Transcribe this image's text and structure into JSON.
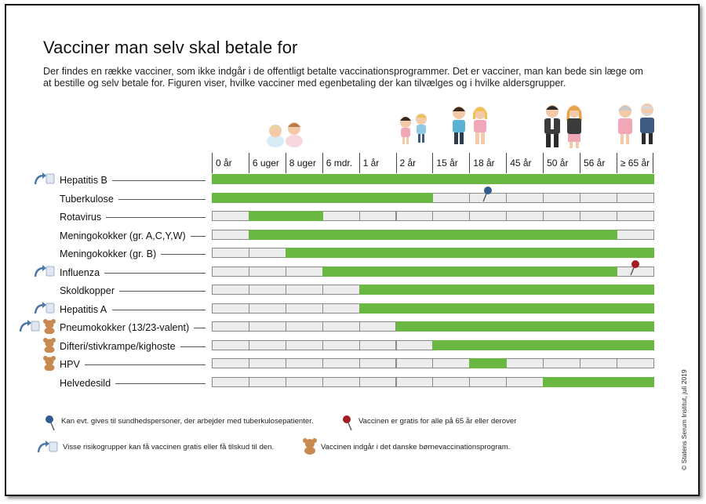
{
  "title": "Vacciner man selv skal betale for",
  "intro": "Der findes en række vacciner, som ikke indgår i de offentligt betalte vaccinationsprogrammer. Det er vacciner, man kan bede sin læge om at bestille og selv betale for. Figuren viser, hvilke vacciner med egenbetaling der kan tilvælges og i hvilke aldersgrupper.",
  "columns": [
    "0 år",
    "6 uger",
    "8 uger",
    "6 mdr.",
    "1 år",
    "2 år",
    "15 år",
    "18 år",
    "45 år",
    "50 år",
    "56 år",
    "≥ 65 år"
  ],
  "rows": [
    {
      "label": "Hepatitis B",
      "from": 0,
      "to": 12,
      "icons": [
        "arrow-icon"
      ]
    },
    {
      "label": "Tuberkulose",
      "from": 0,
      "to": 6,
      "icons": []
    },
    {
      "label": "Rotavirus",
      "from": 1,
      "to": 3,
      "icons": []
    },
    {
      "label": "Meningokokker (gr. A,C,Y,W)",
      "from": 1,
      "to": 11,
      "icons": []
    },
    {
      "label": "Meningokokker (gr. B)",
      "from": 2,
      "to": 12,
      "icons": []
    },
    {
      "label": "Influenza",
      "from": 3,
      "to": 11,
      "icons": [
        "arrow-icon"
      ]
    },
    {
      "label": "Skoldkopper",
      "from": 4,
      "to": 12,
      "icons": []
    },
    {
      "label": "Hepatitis A",
      "from": 4,
      "to": 12,
      "icons": [
        "arrow-icon"
      ]
    },
    {
      "label": "Pneumokokker (13/23-valent)",
      "from": 5,
      "to": 12,
      "icons": [
        "arrow-icon",
        "teddy-icon"
      ]
    },
    {
      "label": "Difteri/stivkrampe/kighoste",
      "from": 6,
      "to": 12,
      "icons": [
        "teddy-icon"
      ]
    },
    {
      "label": "HPV",
      "from": 7,
      "to": 8,
      "icons": [
        "teddy-icon"
      ]
    },
    {
      "label": "Helvedesild",
      "from": 9,
      "to": 12,
      "icons": []
    }
  ],
  "pins": [
    {
      "row": 1,
      "column": 7,
      "color": "#2f5d8f"
    },
    {
      "row": 5,
      "column": 11,
      "color": "#a31c23"
    }
  ],
  "colors": {
    "bar": "#6ab843",
    "empty_cell": "#ececec",
    "blue_pin": "#2f5d8f",
    "red_pin": "#a31c23",
    "teddy": "#c98a52",
    "arrow": "#4a76a8"
  },
  "legend": {
    "blue_pin_text": "Kan evt. gives til sundhedspersoner, der arbejder med tuberkulosepatienter.",
    "red_pin_text": "Vaccinen er gratis for alle på 65 år eller derover",
    "arrow_text": "Visse risikogrupper kan få vaccinen gratis eller få tilskud til den.",
    "teddy_text": "Vaccinen indgår i det danske børnevaccinationsprogram."
  },
  "copyright": "© Statens Serum Institut, juli 2019"
}
